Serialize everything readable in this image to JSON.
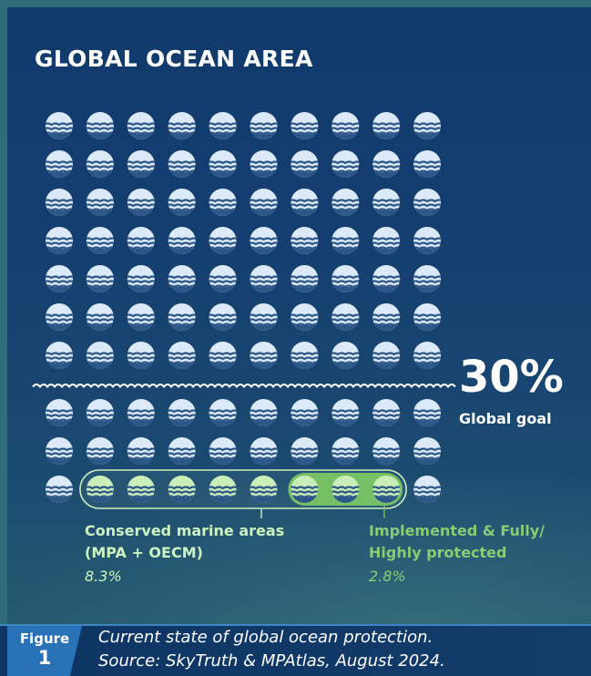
{
  "chart_data": {
    "type": "waffle",
    "title": "GLOBAL OCEAN AREA",
    "columns": 10,
    "total_units": 100,
    "goal": {
      "value": "30%",
      "label": "Global goal",
      "units": 30
    },
    "categories": [
      {
        "name": "Conserved marine areas (MPA + OECM)",
        "line1": "Conserved marine areas",
        "line2": "(MPA + OECM)",
        "value": "8.3%",
        "units": 8
      },
      {
        "name": "Implemented & Fully/ Highly protected",
        "line1": "Implemented & Fully/",
        "line2": "Highly protected",
        "value": "2.8%",
        "units": 3
      }
    ],
    "colors": {
      "ocean": "#dce9f8",
      "wave": "#2d5788",
      "conserved": "#c9eeb8",
      "implemented": "#75c065",
      "outline": "#cdeebf",
      "line": "#ffffff"
    }
  },
  "figure": {
    "label": "Figure",
    "number": "1"
  },
  "caption": {
    "line1": "Current state of global ocean protection.",
    "line2": "Source: SkyTruth & MPAtlas, August 2024."
  }
}
